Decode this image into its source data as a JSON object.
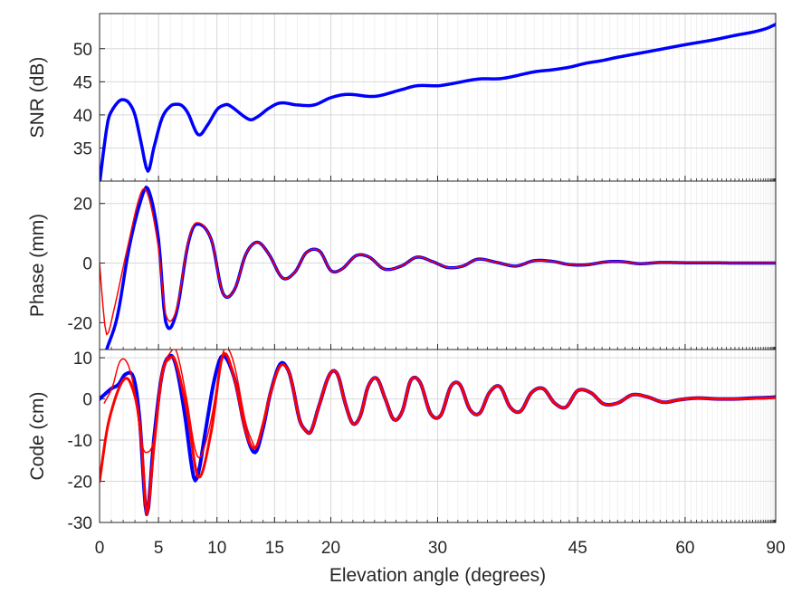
{
  "chart_data": {
    "type": "line",
    "x_axis": {
      "label": "Elevation angle (degrees)",
      "scale": "sine",
      "range": [
        0,
        90
      ],
      "ticks": [
        0,
        5,
        10,
        15,
        20,
        30,
        45,
        60,
        90
      ],
      "minor_ticks": [
        1,
        2,
        3,
        4,
        6,
        7,
        8,
        9,
        11,
        12,
        13,
        14,
        16,
        17,
        18,
        19,
        21,
        22,
        23,
        24,
        25,
        26,
        27,
        28,
        29,
        31,
        32,
        33,
        34,
        35,
        36,
        37,
        38,
        39,
        40,
        41,
        42,
        43,
        44,
        46,
        47,
        48,
        49,
        50,
        51,
        52,
        53,
        54,
        55,
        56,
        57,
        58,
        59,
        61,
        62,
        63,
        64,
        65,
        66,
        67,
        68,
        69,
        70,
        71,
        72,
        73,
        74,
        75,
        76,
        77,
        78,
        79,
        80,
        81,
        82,
        83,
        84,
        85,
        86,
        87,
        88,
        89
      ],
      "grid": true
    },
    "colors": {
      "model": "#0000ff",
      "fit": "#ff0000"
    },
    "panels": [
      {
        "name": "snr",
        "ylabel": "SNR (dB)",
        "ylim": [
          30,
          55.3
        ],
        "yticks": [
          35,
          40,
          45,
          50
        ],
        "series": [
          {
            "color": "#0000ff",
            "width": 3.5,
            "x": [
              0,
              0.3,
              0.7,
              1,
              1.6,
              2,
              2.5,
              3,
              3.5,
              4.1,
              4.6,
              5.3,
              6,
              6.5,
              7,
              7.5,
              8.4,
              9.2,
              10,
              10.5,
              11,
              12.8,
              13.5,
              14.5,
              15.5,
              17,
              18.5,
              20,
              21.5,
              24,
              26.5,
              28,
              30,
              31,
              34,
              36.5,
              40,
              42,
              44,
              46,
              48,
              50,
              55,
              60,
              65,
              70,
              75,
              80,
              85,
              90
            ],
            "y": [
              29.5,
              34,
              39,
              40.5,
              42,
              42.3,
              41.8,
              40,
              36,
              31.5,
              35,
              39.5,
              41.3,
              41.6,
              41.4,
              40.3,
              37,
              38.5,
              40.8,
              41.4,
              41.5,
              39.3,
              39.7,
              41,
              41.8,
              41.5,
              41.5,
              42.6,
              43.1,
              42.8,
              43.8,
              44.4,
              44.4,
              44.6,
              45.4,
              45.5,
              46.5,
              46.8,
              47.2,
              47.8,
              48.2,
              48.7,
              49.7,
              50.6,
              51.3,
              52,
              52.5,
              53,
              53.5,
              53.7
            ]
          }
        ]
      },
      {
        "name": "phase",
        "ylabel": "Phase (mm)",
        "ylim": [
          -29,
          27.5
        ],
        "yticks": [
          -20,
          0,
          20
        ],
        "series": [
          {
            "color": "#0000ff",
            "width": 3.5,
            "x": [
              0.6,
              1.5,
              2.5,
              3.5,
              4.1,
              5,
              5.6,
              6.5,
              7.5,
              8.2,
              9.5,
              10.5,
              11.5,
              12.5,
              13.5,
              14.5,
              15.7,
              16.8,
              17.8,
              19,
              20,
              21,
              22.3,
              23.5,
              24.9,
              26.5,
              28,
              29.5,
              31,
              32.5,
              34,
              36,
              38,
              40,
              42,
              44,
              46,
              48.5,
              50.5,
              53,
              56,
              60,
              65,
              70,
              80,
              90
            ],
            "y": [
              -29,
              -18,
              5,
              21,
              25,
              8,
              -19.5,
              -17,
              6,
              13,
              8,
              -10,
              -9,
              3,
              7,
              3,
              -5,
              -3,
              3.5,
              4,
              -2.5,
              -2,
              2.5,
              2,
              -2,
              -1,
              2,
              0.5,
              -1.5,
              -1,
              1.3,
              0.2,
              -1,
              0.8,
              0.6,
              -0.5,
              -0.6,
              0.4,
              0.5,
              -0.2,
              0.2,
              0.1,
              0.1,
              0,
              0,
              0
            ]
          },
          {
            "color": "#ff0000",
            "width": 1.5,
            "x": [
              0,
              0.3,
              0.6,
              1.2,
              2.3,
              3.5,
              4.1,
              5,
              5.6,
              6.5,
              7.5,
              8.2,
              9.5,
              10.5,
              11.5,
              12.5,
              13.5,
              14.5,
              15.7,
              16.8,
              17.8,
              19,
              20,
              21,
              22.3,
              23.5,
              24.9,
              26.5,
              28,
              29.5,
              31,
              32.5,
              34,
              36,
              38,
              40,
              42,
              44,
              46,
              48.5,
              50.5,
              53,
              56,
              60,
              65,
              70,
              80,
              90
            ],
            "y": [
              0,
              -15,
              -24,
              -16,
              4,
              23.5,
              23,
              5,
              -17,
              -16,
              6.5,
              13.5,
              8,
              -10,
              -9,
              3,
              7,
              3,
              -5,
              -3,
              3.5,
              4,
              -2.5,
              -2,
              2.5,
              2,
              -2,
              -1,
              2,
              0.5,
              -1.5,
              -1,
              1.3,
              0.2,
              -1,
              0.8,
              0.6,
              -0.5,
              -0.6,
              0.4,
              0.5,
              -0.2,
              0.2,
              0.1,
              0.1,
              0,
              0,
              0
            ]
          }
        ]
      },
      {
        "name": "code",
        "ylabel": "Code (cm)",
        "ylim": [
          -30,
          12
        ],
        "yticks": [
          -30,
          -20,
          -10,
          0,
          10
        ],
        "series": [
          {
            "color": "#0000ff",
            "width": 4,
            "x": [
              0,
              1,
              1.6,
              2.2,
              2.9,
              3.4,
              4,
              4.6,
              5.3,
              6,
              6.5,
              7.2,
              8,
              8.4,
              9,
              9.8,
              10.5,
              11.5,
              12.5,
              13.3,
              14,
              14.6,
              15.5,
              16.2,
              16.6,
              17.2,
              17.7,
              18.2,
              18.9,
              19.9,
              20.6,
              21.3,
              22,
              22.7,
              23.4,
              24.2,
              25,
              25.8,
              26.6,
              27.4,
              28.3,
              29.3,
              30.3,
              31.3,
              32.2,
              33.2,
              34.2,
              35.2,
              36.3,
              37.4,
              38.5,
              39.7,
              41,
              42.3,
              43.6,
              45,
              46.6,
              48.2,
              50,
              52,
              54.1,
              56.5,
              59,
              62,
              66,
              70,
              75,
              80,
              85,
              90
            ],
            "y": [
              0,
              2.5,
              3.5,
              6,
              5,
              -5,
              -28,
              -10,
              6,
              10.5,
              8,
              -3,
              -19,
              -18,
              -8,
              5,
              10.5,
              5,
              -8,
              -13,
              -7,
              1,
              8.5,
              7,
              3,
              -5,
              -7.5,
              -8,
              -2,
              6,
              6,
              -1,
              -6,
              -4,
              3,
              5,
              0,
              -5,
              -3,
              4.5,
              4,
              -3.5,
              -4,
              3,
              3.5,
              -2.5,
              -3.5,
              1.5,
              3,
              -2,
              -3,
              1.5,
              2.5,
              -1,
              -2,
              2,
              1.5,
              -1.2,
              -1,
              1,
              0.5,
              -0.8,
              -0.2,
              0.2,
              0,
              0,
              0.2,
              0.3,
              0.4,
              0.5
            ]
          },
          {
            "color": "#ff0000",
            "width": 3,
            "x": [
              0,
              0.6,
              1.1,
              1.7,
              2.2,
              2.6,
              3.2,
              3.6,
              4,
              4.6,
              5.3,
              6,
              6.4,
              7,
              7.5,
              8.4,
              9.5,
              10.5,
              11.5,
              12.5,
              13.3,
              14,
              14.6,
              15.5,
              16.2,
              16.6,
              17.2,
              17.7,
              18.2,
              18.9,
              19.9,
              20.6,
              21.3,
              22,
              22.7,
              23.4,
              24.2,
              25,
              25.8,
              26.6,
              27.4,
              28.3,
              29.3,
              30.3,
              31.3,
              32.2,
              33.2,
              34.2,
              35.2,
              36.3,
              37.4,
              38.5,
              39.7,
              41,
              42.3,
              43.6,
              45,
              46.6,
              48.2,
              50,
              52,
              54.1,
              56.5,
              59,
              62,
              66,
              70,
              75,
              80,
              85,
              90
            ],
            "y": [
              -20,
              -8,
              -2,
              3,
              5,
              4,
              -2,
              -12,
              -28,
              -12,
              6,
              10,
              9.5,
              3,
              -4,
              -19,
              -8,
              10.5,
              5,
              -8,
              -12,
              -6,
              1,
              8,
              7,
              3,
              -5,
              -7.5,
              -8,
              -2,
              6,
              6,
              -1,
              -6,
              -4,
              3,
              5,
              0,
              -5,
              -3,
              4.5,
              4,
              -3.5,
              -4,
              3,
              3.5,
              -2.5,
              -3.5,
              1.5,
              3,
              -2,
              -3,
              1.5,
              2.5,
              -1,
              -2,
              2,
              1.5,
              -1.2,
              -1,
              1,
              0.5,
              -0.8,
              -0.2,
              0.2,
              0,
              0,
              0.1,
              0.2,
              0.3,
              0.3
            ]
          },
          {
            "color": "#ff0000",
            "width": 1.5,
            "x": [
              0.4,
              1.1,
              1.7,
              2.3,
              2.9,
              3.6,
              4,
              4.6,
              5.3,
              6.2,
              6.6,
              7.4,
              8.1,
              8.6,
              9.5,
              10.5,
              11,
              11.6,
              12.5,
              13.3
            ],
            "y": [
              -1,
              3,
              9,
              9,
              3,
              -11,
              -13,
              -10,
              6,
              12,
              11,
              0,
              -12,
              -14,
              -5,
              11,
              12,
              7,
              -6,
              -12
            ]
          }
        ]
      }
    ]
  }
}
